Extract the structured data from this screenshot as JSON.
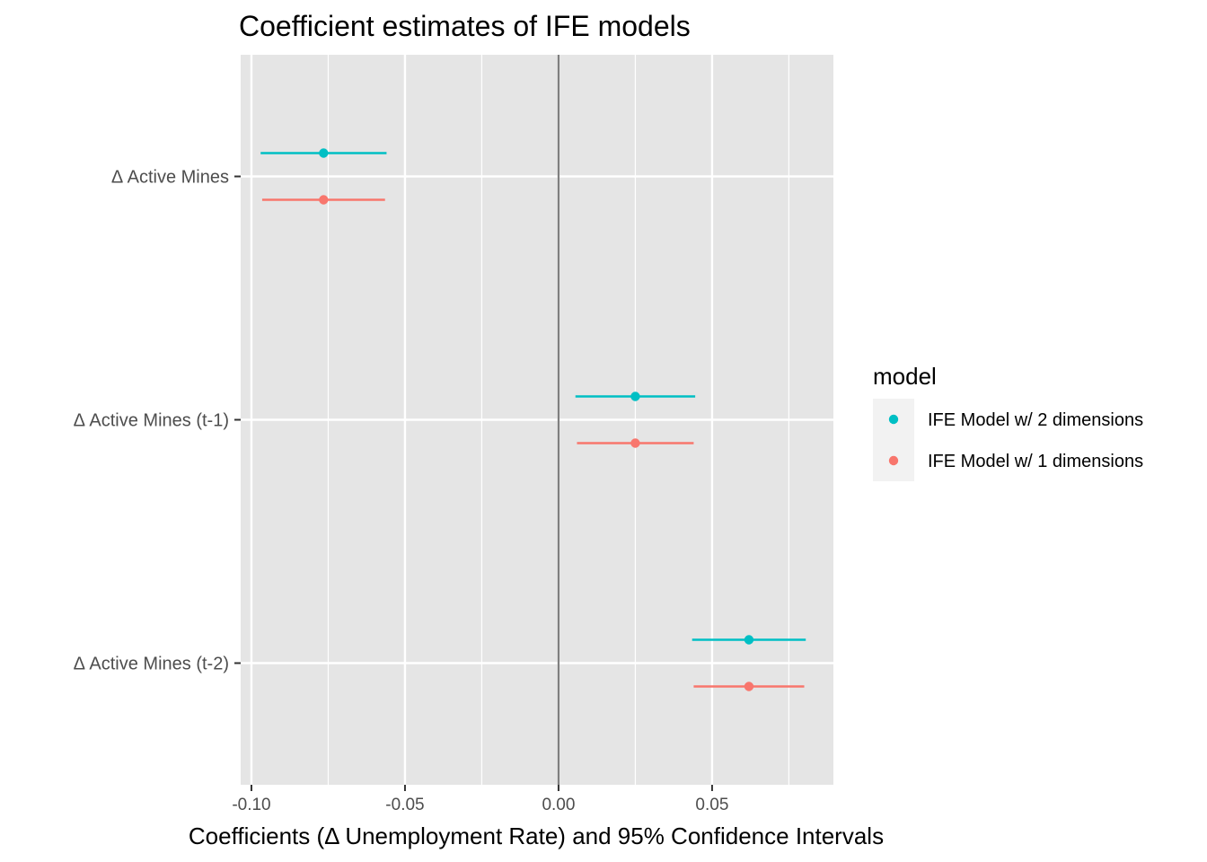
{
  "chart_data": {
    "type": "scatter",
    "title": "Coefficient estimates of IFE models",
    "xlabel": "Coefficients (Δ Unemployment Rate) and 95% Confidence Intervals",
    "ylabel": "",
    "xlim": [
      -0.1035,
      0.0895
    ],
    "x_ticks": [
      -0.1,
      -0.05,
      0.0,
      0.05
    ],
    "x_tick_labels": [
      "-0.10",
      "-0.05",
      "0.00",
      "0.05"
    ],
    "categories": [
      "Δ Active Mines",
      "Δ Active Mines (t-1)",
      "Δ Active Mines (t-2)"
    ],
    "reference_line_x": 0,
    "grid": true,
    "legend": {
      "title": "model",
      "position": "right"
    },
    "series": [
      {
        "name": "IFE Model w/ 2 dimensions",
        "color": "#00BFC4",
        "points": [
          {
            "category": "Δ Active Mines",
            "estimate": -0.0765,
            "lower": -0.097,
            "upper": -0.056
          },
          {
            "category": "Δ Active Mines (t-1)",
            "estimate": 0.025,
            "lower": 0.0055,
            "upper": 0.0445
          },
          {
            "category": "Δ Active Mines (t-2)",
            "estimate": 0.062,
            "lower": 0.0435,
            "upper": 0.0805
          }
        ]
      },
      {
        "name": "IFE Model w/ 1 dimensions",
        "color": "#F8766D",
        "points": [
          {
            "category": "Δ Active Mines",
            "estimate": -0.0765,
            "lower": -0.0965,
            "upper": -0.0565
          },
          {
            "category": "Δ Active Mines (t-1)",
            "estimate": 0.025,
            "lower": 0.006,
            "upper": 0.044
          },
          {
            "category": "Δ Active Mines (t-2)",
            "estimate": 0.062,
            "lower": 0.044,
            "upper": 0.08
          }
        ]
      }
    ]
  }
}
